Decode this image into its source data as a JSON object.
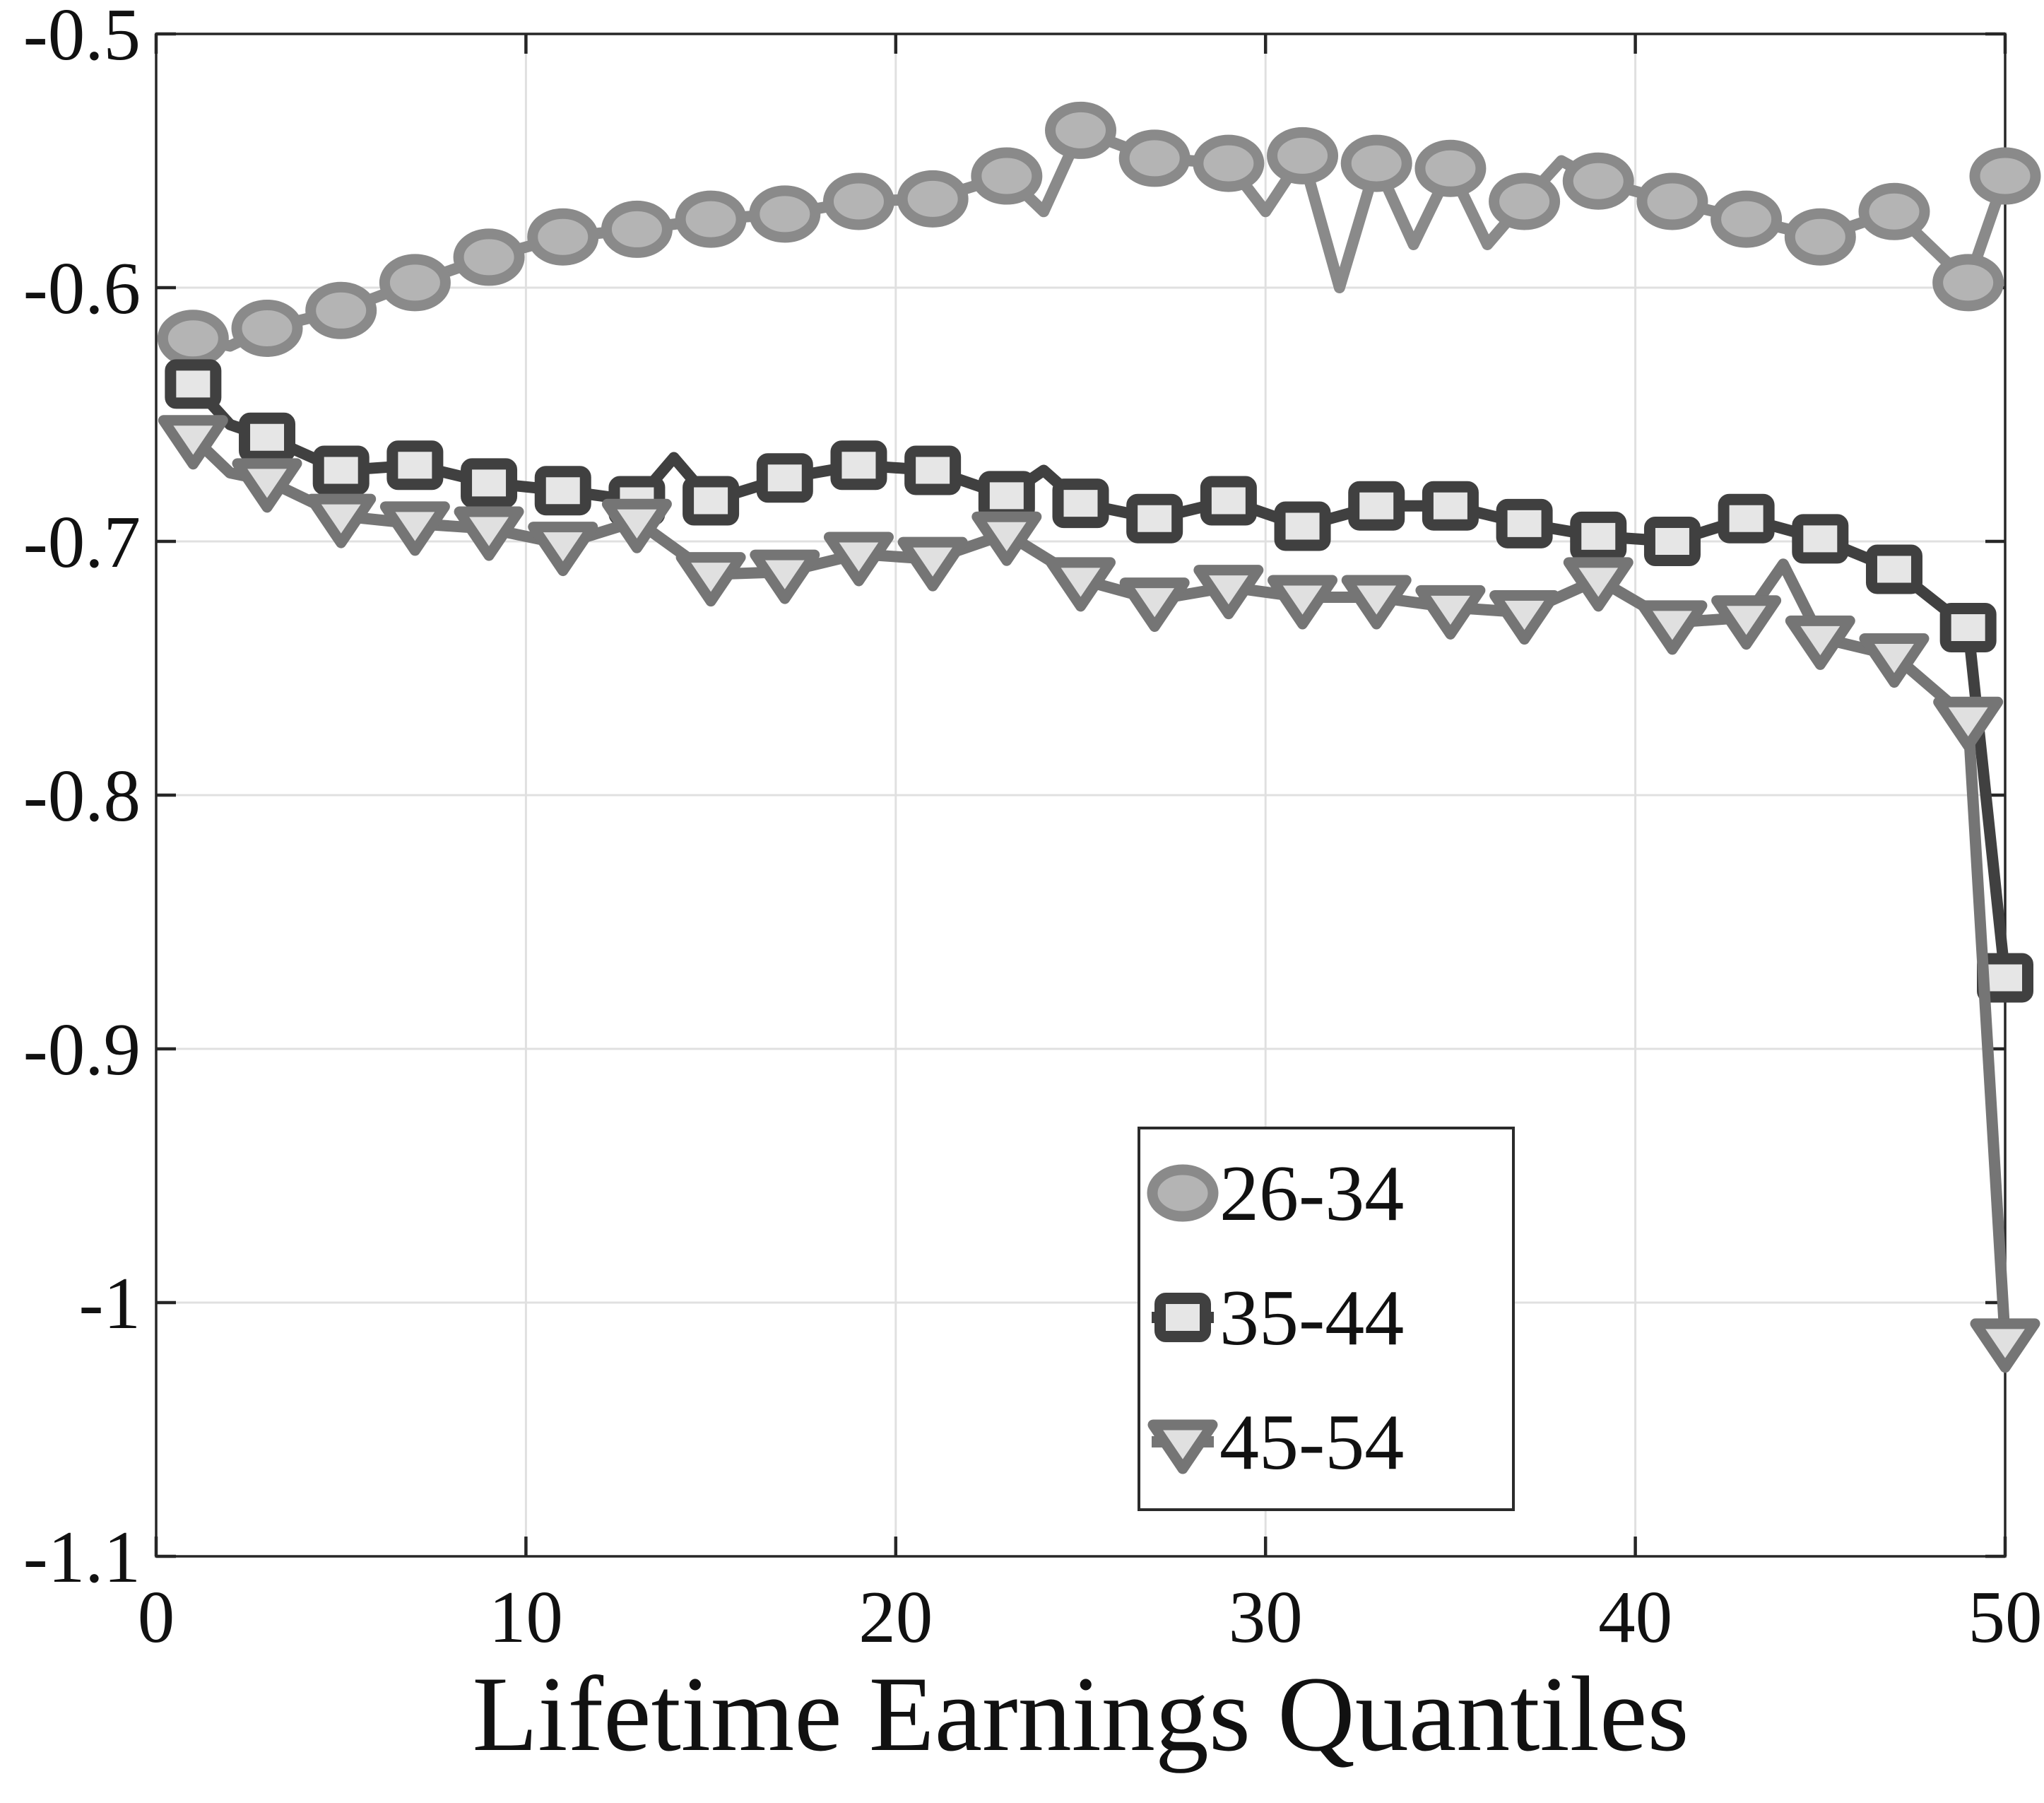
{
  "chart_data": {
    "type": "line",
    "title": "",
    "xlabel": "Lifetime Earnings Quantiles",
    "ylabel": "",
    "xlim": [
      0,
      50
    ],
    "ylim": [
      -1.1,
      -0.5
    ],
    "xticks": [
      0,
      10,
      20,
      30,
      40,
      50
    ],
    "xtick_labels": [
      "0",
      "10",
      "20",
      "30",
      "40",
      "50"
    ],
    "yticks": [
      -0.5,
      -0.6,
      -0.7,
      -0.8,
      -0.9,
      -1,
      -1.1
    ],
    "ytick_labels": [
      "-0.5",
      "-0.6",
      "-0.7",
      "-0.8",
      "-0.9",
      "-1",
      "-1.1"
    ],
    "grid": true,
    "background": "#ffffff",
    "axis_color": "#262626",
    "grid_color": "#e0e0e0",
    "tick_label_color": "#111111",
    "legend_position": "inside-bottom-center-right",
    "legend_border_color": "#2b2b2b",
    "series": [
      {
        "name": "26-34",
        "marker": "circle-icon",
        "line_color": "#8a8a8a",
        "marker_edge": "#8a8a8a",
        "marker_fill": "#b4b4b4",
        "points": [
          [
            1,
            -0.62,
            1
          ],
          [
            2,
            -0.623,
            0
          ],
          [
            3,
            -0.616,
            1
          ],
          [
            5,
            -0.609,
            1
          ],
          [
            7,
            -0.598,
            1
          ],
          [
            9,
            -0.588,
            1
          ],
          [
            11,
            -0.58,
            1
          ],
          [
            13,
            -0.577,
            1
          ],
          [
            15,
            -0.573,
            1
          ],
          [
            17,
            -0.571,
            1
          ],
          [
            19,
            -0.566,
            1
          ],
          [
            21,
            -0.565,
            1
          ],
          [
            23,
            -0.556,
            1
          ],
          [
            24,
            -0.57,
            0
          ],
          [
            25,
            -0.538,
            1
          ],
          [
            27,
            -0.549,
            1
          ],
          [
            29,
            -0.551,
            1
          ],
          [
            30,
            -0.57,
            0
          ],
          [
            31,
            -0.548,
            1
          ],
          [
            32,
            -0.6,
            0
          ],
          [
            33,
            -0.551,
            1
          ],
          [
            34,
            -0.583,
            0
          ],
          [
            35,
            -0.553,
            1
          ],
          [
            36,
            -0.583,
            0
          ],
          [
            37,
            -0.566,
            1
          ],
          [
            38,
            -0.55,
            0
          ],
          [
            39,
            -0.558,
            1
          ],
          [
            41,
            -0.566,
            1
          ],
          [
            43,
            -0.573,
            1
          ],
          [
            45,
            -0.58,
            1
          ],
          [
            47,
            -0.57,
            1
          ],
          [
            49,
            -0.598,
            1
          ],
          [
            50,
            -0.556,
            1
          ]
        ]
      },
      {
        "name": "35-44",
        "marker": "square-icon",
        "line_color": "#404040",
        "marker_edge": "#404040",
        "marker_fill": "#e6e6e6",
        "points": [
          [
            1,
            -0.638,
            1
          ],
          [
            2,
            -0.654,
            0
          ],
          [
            3,
            -0.659,
            1
          ],
          [
            5,
            -0.672,
            1
          ],
          [
            7,
            -0.67,
            1
          ],
          [
            9,
            -0.677,
            1
          ],
          [
            11,
            -0.68,
            1
          ],
          [
            13,
            -0.684,
            1
          ],
          [
            14,
            -0.667,
            0
          ],
          [
            15,
            -0.684,
            1
          ],
          [
            17,
            -0.675,
            1
          ],
          [
            19,
            -0.67,
            1
          ],
          [
            21,
            -0.672,
            1
          ],
          [
            23,
            -0.682,
            1
          ],
          [
            24,
            -0.672,
            0
          ],
          [
            25,
            -0.685,
            1
          ],
          [
            27,
            -0.691,
            1
          ],
          [
            29,
            -0.684,
            1
          ],
          [
            31,
            -0.694,
            1
          ],
          [
            33,
            -0.686,
            1
          ],
          [
            35,
            -0.686,
            1
          ],
          [
            37,
            -0.693,
            1
          ],
          [
            39,
            -0.698,
            1
          ],
          [
            41,
            -0.7,
            1
          ],
          [
            43,
            -0.691,
            1
          ],
          [
            45,
            -0.699,
            1
          ],
          [
            47,
            -0.711,
            1
          ],
          [
            49,
            -0.734,
            1
          ],
          [
            50,
            -0.872,
            1
          ]
        ]
      },
      {
        "name": "45-54",
        "marker": "triangle-down-icon",
        "line_color": "#757575",
        "marker_edge": "#757575",
        "marker_fill": "#e0e0e0",
        "points": [
          [
            1,
            -0.659,
            1
          ],
          [
            2,
            -0.673,
            0
          ],
          [
            3,
            -0.676,
            1
          ],
          [
            5,
            -0.69,
            1
          ],
          [
            7,
            -0.693,
            1
          ],
          [
            9,
            -0.695,
            1
          ],
          [
            11,
            -0.701,
            1
          ],
          [
            13,
            -0.692,
            1
          ],
          [
            15,
            -0.713,
            1
          ],
          [
            17,
            -0.712,
            1
          ],
          [
            19,
            -0.705,
            1
          ],
          [
            21,
            -0.707,
            1
          ],
          [
            23,
            -0.697,
            1
          ],
          [
            25,
            -0.715,
            1
          ],
          [
            27,
            -0.723,
            1
          ],
          [
            29,
            -0.718,
            1
          ],
          [
            31,
            -0.722,
            1
          ],
          [
            33,
            -0.722,
            1
          ],
          [
            35,
            -0.726,
            1
          ],
          [
            37,
            -0.728,
            1
          ],
          [
            39,
            -0.715,
            1
          ],
          [
            41,
            -0.732,
            1
          ],
          [
            43,
            -0.73,
            1
          ],
          [
            44,
            -0.709,
            0
          ],
          [
            45,
            -0.738,
            1
          ],
          [
            47,
            -0.745,
            1
          ],
          [
            49,
            -0.77,
            1
          ],
          [
            50,
            -1.015,
            1
          ]
        ]
      }
    ]
  }
}
